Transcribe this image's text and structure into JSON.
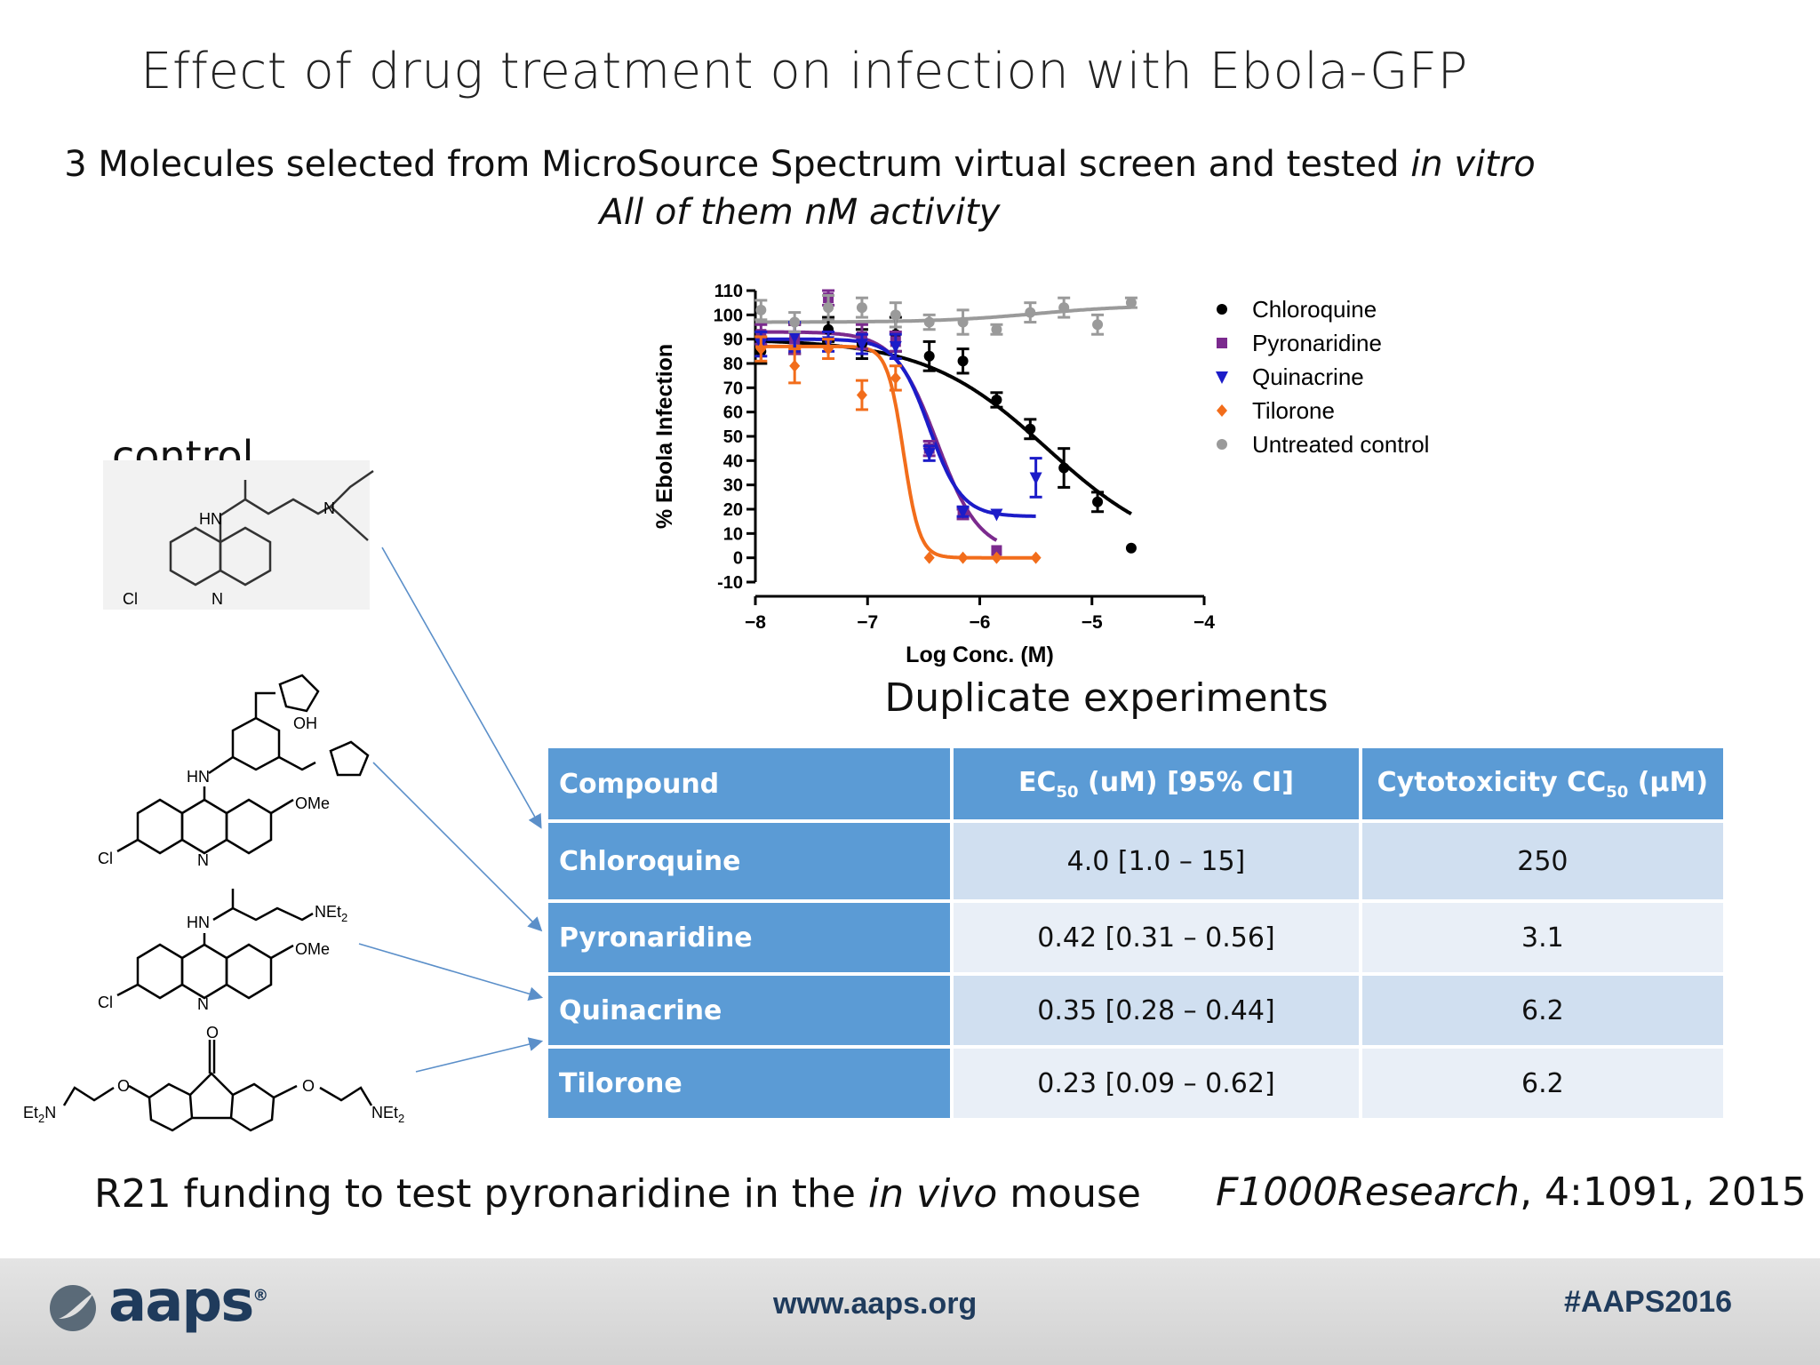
{
  "title": "Effect of drug treatment on infection with Ebola-GFP",
  "subtitle_line1_a": "3 Molecules selected from MicroSource Spectrum virtual screen and tested ",
  "subtitle_line1_b": "in vitro",
  "subtitle_line2": "All of them nM activity",
  "control_label": "control",
  "molecule_labels": {
    "hn": "HN",
    "cl": "Cl",
    "n": "N",
    "oh": "OH",
    "ome": "OMe",
    "net2": "NEt",
    "sub2": "2",
    "o": "O",
    "et2n_a": "Et",
    "et2n_b": "N"
  },
  "chart_data": {
    "type": "scatter",
    "xlabel": "Log Conc. (M)",
    "ylabel": "% Ebola Infection",
    "xlim": [
      -8,
      -4
    ],
    "ylim": [
      -10,
      110
    ],
    "xticks": [
      "-8",
      "-7",
      "-6",
      "-5",
      "-4"
    ],
    "yticks": [
      "-10",
      "0",
      "10",
      "20",
      "30",
      "40",
      "50",
      "60",
      "70",
      "80",
      "90",
      "100",
      "110"
    ],
    "legend_position": "right",
    "series": [
      {
        "name": "Chloroquine",
        "color": "#000000",
        "marker": "circle",
        "x": [
          -7.95,
          -7.65,
          -7.35,
          -7.05,
          -6.75,
          -6.45,
          -6.15,
          -5.85,
          -5.55,
          -5.25,
          -4.95,
          -4.65
        ],
        "y": [
          85,
          90,
          94,
          88,
          92,
          83,
          81,
          65,
          53,
          37,
          23,
          4
        ],
        "err": [
          5,
          6,
          5,
          6,
          7,
          6,
          5,
          3,
          4,
          8,
          4,
          0
        ],
        "fit": {
          "top": 90,
          "bottom": 0,
          "logEC50": -5.4,
          "hill": 0.8,
          "xmax": -4.65
        }
      },
      {
        "name": "Pyronaridine",
        "color": "#7b2a8e",
        "marker": "square",
        "x": [
          -7.95,
          -7.65,
          -7.35,
          -7.05,
          -6.75,
          -6.45,
          -6.15,
          -5.85
        ],
        "y": [
          92,
          90,
          107,
          91,
          89,
          45,
          18,
          3
        ],
        "err": [
          4,
          6,
          3,
          5,
          4,
          3,
          2,
          0
        ],
        "fit": {
          "top": 93,
          "bottom": 2,
          "logEC50": -6.38,
          "hill": 2.3,
          "xmax": -5.85
        }
      },
      {
        "name": "Quinacrine",
        "color": "#1c1cc8",
        "marker": "triangle",
        "x": [
          -7.95,
          -7.65,
          -7.35,
          -7.05,
          -6.75,
          -6.45,
          -6.15,
          -5.85,
          -5.5
        ],
        "y": [
          88,
          91,
          89,
          88,
          87,
          43,
          19,
          18,
          33
        ],
        "err": [
          5,
          6,
          4,
          4,
          5,
          3,
          2,
          0,
          8
        ],
        "fit": {
          "top": 90,
          "bottom": 17,
          "logEC50": -6.45,
          "hill": 3.0,
          "xmax": -5.5
        }
      },
      {
        "name": "Tilorone",
        "color": "#f26d1b",
        "marker": "diamond",
        "x": [
          -7.95,
          -7.65,
          -7.35,
          -7.05,
          -6.75,
          -6.45,
          -6.15,
          -5.85,
          -5.5
        ],
        "y": [
          86,
          79,
          86,
          67,
          74,
          0,
          0,
          0,
          0
        ],
        "err": [
          5,
          7,
          4,
          6,
          5,
          0,
          0,
          0,
          0
        ],
        "fit": {
          "top": 87,
          "bottom": 0,
          "logEC50": -6.68,
          "hill": 6.0,
          "xmax": -5.5
        }
      },
      {
        "name": "Untreated control",
        "color": "#9a9a9a",
        "marker": "circle",
        "x": [
          -7.95,
          -7.65,
          -7.35,
          -7.05,
          -6.75,
          -6.45,
          -6.15,
          -5.85,
          -5.55,
          -5.25,
          -4.95,
          -4.65
        ],
        "y": [
          102,
          97,
          103,
          103,
          100,
          97,
          97,
          94,
          101,
          103,
          96,
          105
        ],
        "err": [
          4,
          4,
          5,
          4,
          5,
          3,
          5,
          2,
          4,
          4,
          4,
          2
        ],
        "fit": {
          "top": 97,
          "bottom": 104,
          "logEC50": -5.5,
          "hill": 1.0,
          "xmax": -4.65
        }
      }
    ]
  },
  "duplicate_title": "Duplicate experiments",
  "table": {
    "headers": {
      "compound": "Compound",
      "ec50_a": "EC",
      "ec50_sub": "50",
      "ec50_b": " (uM) [95% CI]",
      "cc50_a": "Cytotoxicity CC",
      "cc50_sub": "50",
      "cc50_b": " (µM)"
    },
    "rows": [
      {
        "compound": "Chloroquine",
        "ec50": "4.0 [1.0 – 15]",
        "cc50": "250"
      },
      {
        "compound": "Pyronaridine",
        "ec50": "0.42 [0.31 – 0.56]",
        "cc50": "3.1"
      },
      {
        "compound": "Quinacrine",
        "ec50": "0.35 [0.28 – 0.44]",
        "cc50": "6.2"
      },
      {
        "compound": "Tilorone",
        "ec50": "0.23 [0.09 – 0.62]",
        "cc50": "6.2"
      }
    ]
  },
  "funding_a": "R21 funding to test pyronaridine in the ",
  "funding_b": "in vivo",
  "funding_c": " mouse",
  "citation_a": "F1000Research",
  "citation_b": ", 4:1091, 2015",
  "footer": {
    "logo": "aaps",
    "logo_mark": "®",
    "url": "www.aaps.org",
    "hashtag": "#AAPS2016"
  }
}
